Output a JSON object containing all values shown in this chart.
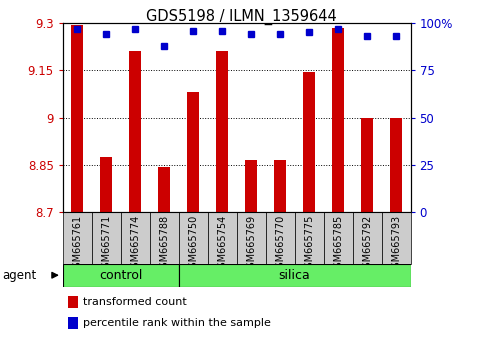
{
  "title": "GDS5198 / ILMN_1359644",
  "samples": [
    "GSM665761",
    "GSM665771",
    "GSM665774",
    "GSM665788",
    "GSM665750",
    "GSM665754",
    "GSM665769",
    "GSM665770",
    "GSM665775",
    "GSM665785",
    "GSM665792",
    "GSM665793"
  ],
  "transformed_counts": [
    9.295,
    8.875,
    9.21,
    8.845,
    9.08,
    9.21,
    8.865,
    8.865,
    9.145,
    9.285,
    9.0,
    9.0
  ],
  "percentile_ranks": [
    97,
    94,
    97,
    88,
    96,
    96,
    94,
    94,
    95,
    97,
    93,
    93
  ],
  "n_control": 4,
  "n_silica": 8,
  "ylim_left": [
    8.7,
    9.3
  ],
  "ylim_right": [
    0,
    100
  ],
  "yticks_left": [
    8.7,
    8.85,
    9.0,
    9.15,
    9.3
  ],
  "ytick_labels_left": [
    "8.7",
    "8.85",
    "9",
    "9.15",
    "9.3"
  ],
  "yticks_right": [
    0,
    25,
    50,
    75,
    100
  ],
  "ytick_labels_right": [
    "0",
    "25",
    "50",
    "75",
    "100%"
  ],
  "bar_color": "#cc0000",
  "dot_color": "#0000cc",
  "group_color": "#66ee66",
  "label_bg_color": "#cccccc",
  "left_tick_color": "#cc0000",
  "right_tick_color": "#0000cc",
  "legend_bar_label": "transformed count",
  "legend_dot_label": "percentile rank within the sample",
  "agent_label": "agent",
  "control_label": "control",
  "silica_label": "silica",
  "bar_width": 0.4,
  "dot_size": 5
}
